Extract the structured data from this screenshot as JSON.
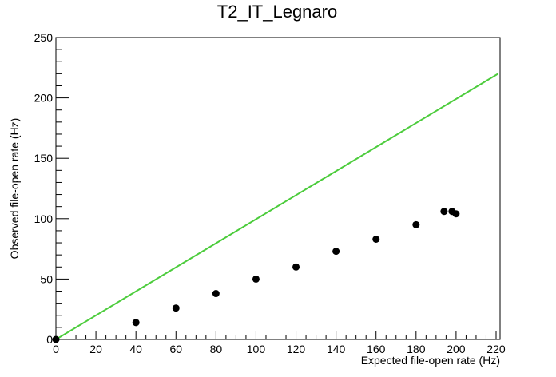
{
  "chart_data": {
    "type": "scatter",
    "title": "T2_IT_Legnaro",
    "xlabel": "Expected file-open rate (Hz)",
    "ylabel": "Observed file-open rate (Hz)",
    "xlim": [
      0,
      222
    ],
    "ylim": [
      0,
      250
    ],
    "x_ticks": [
      0,
      20,
      40,
      60,
      80,
      100,
      120,
      140,
      160,
      180,
      200,
      220
    ],
    "y_ticks": [
      0,
      50,
      100,
      150,
      200,
      250
    ],
    "grid": false,
    "series": [
      {
        "type": "scatter",
        "color": "#000000",
        "x": [
          0,
          40,
          60,
          80,
          100,
          120,
          140,
          160,
          180,
          194,
          198,
          200
        ],
        "y": [
          0,
          14,
          26,
          38,
          50,
          60,
          73,
          83,
          95,
          106,
          106,
          104
        ]
      },
      {
        "type": "line",
        "color": "#4ccc3c",
        "x": [
          0,
          221
        ],
        "y": [
          0,
          220
        ]
      }
    ]
  }
}
